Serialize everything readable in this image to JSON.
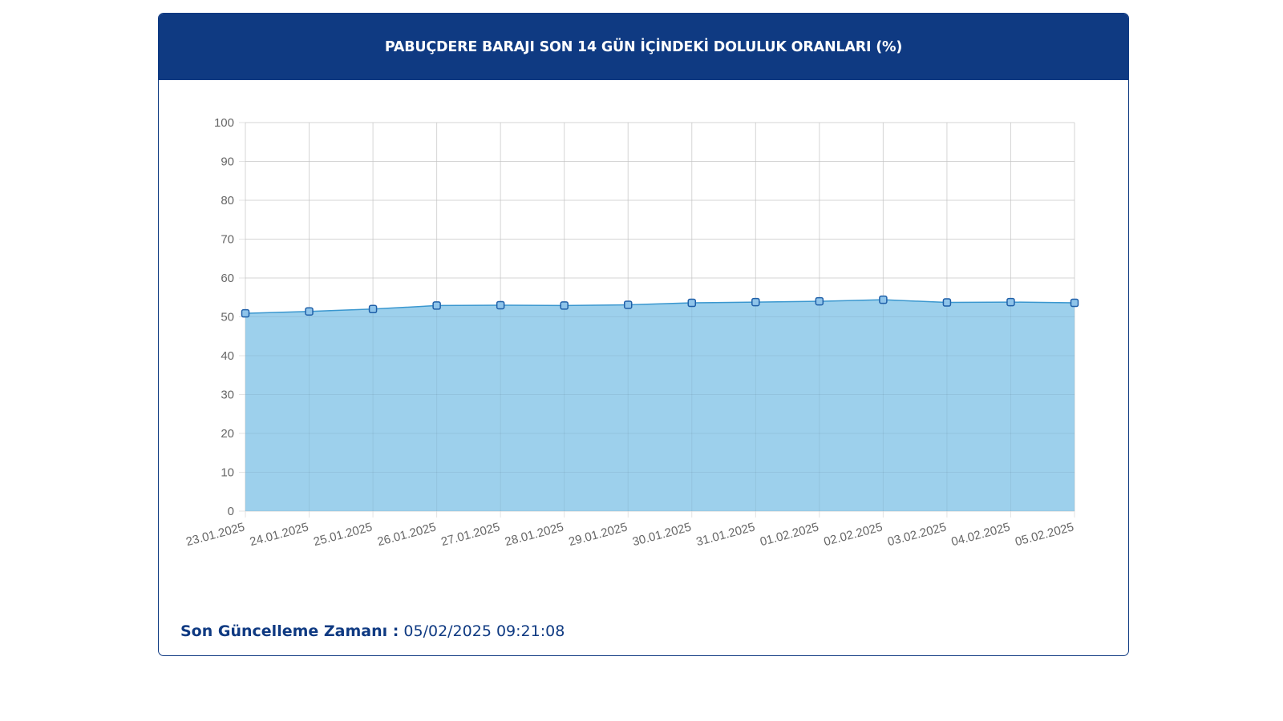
{
  "header": {
    "title": "PABUÇDERE BARAJI SON 14 GÜN İÇİNDEKİ DOLULUK ORANLARI (%)"
  },
  "footer": {
    "label": "Son Güncelleme Zamanı :",
    "value": " 05/02/2025 09:21:08"
  },
  "colors": {
    "header_bg": "#0f3a82",
    "area_fill": "#9dd0ec",
    "line": "#3a97cf",
    "marker_fill": "#8ec4ea",
    "marker_stroke": "#1f5fa8",
    "grid": "#e3e3e3",
    "tick_text": "#666666"
  },
  "chart_data": {
    "type": "area",
    "title": "PABUÇDERE BARAJI SON 14 GÜN İÇİNDEKİ DOLULUK ORANLARI (%)",
    "xlabel": "",
    "ylabel": "",
    "ylim": [
      0,
      100
    ],
    "yticks": [
      "100",
      "90",
      "80",
      "70",
      "60",
      "50",
      "40",
      "30",
      "20",
      "10",
      "0"
    ],
    "grid": true,
    "legend": "none",
    "categories": [
      "23.01.2025",
      "24.01.2025",
      "25.01.2025",
      "26.01.2025",
      "27.01.2025",
      "28.01.2025",
      "29.01.2025",
      "30.01.2025",
      "31.01.2025",
      "01.02.2025",
      "02.02.2025",
      "03.02.2025",
      "04.02.2025",
      "05.02.2025"
    ],
    "series": [
      {
        "values": [
          50.9,
          51.4,
          52.0,
          52.9,
          53.0,
          52.9,
          53.1,
          53.6,
          53.8,
          54.0,
          54.4,
          53.7,
          53.8,
          53.6
        ]
      }
    ]
  }
}
